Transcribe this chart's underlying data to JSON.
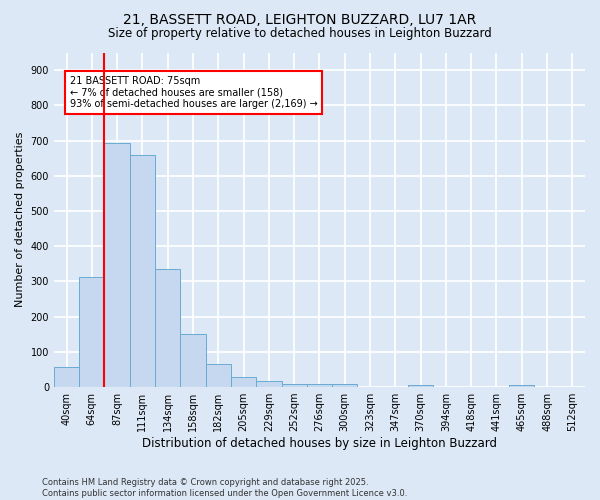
{
  "title": "21, BASSETT ROAD, LEIGHTON BUZZARD, LU7 1AR",
  "subtitle": "Size of property relative to detached houses in Leighton Buzzard",
  "xlabel": "Distribution of detached houses by size in Leighton Buzzard",
  "ylabel": "Number of detached properties",
  "footer": "Contains HM Land Registry data © Crown copyright and database right 2025.\nContains public sector information licensed under the Open Government Licence v3.0.",
  "categories": [
    "40sqm",
    "64sqm",
    "87sqm",
    "111sqm",
    "134sqm",
    "158sqm",
    "182sqm",
    "205sqm",
    "229sqm",
    "252sqm",
    "276sqm",
    "300sqm",
    "323sqm",
    "347sqm",
    "370sqm",
    "394sqm",
    "418sqm",
    "441sqm",
    "465sqm",
    "488sqm",
    "512sqm"
  ],
  "values": [
    58,
    312,
    693,
    658,
    335,
    150,
    65,
    30,
    18,
    10,
    10,
    8,
    0,
    0,
    5,
    0,
    0,
    0,
    5,
    0,
    0
  ],
  "bar_color": "#c5d8f0",
  "bar_edge_color": "#6aabd2",
  "marker_color": "red",
  "annotation_text": "21 BASSETT ROAD: 75sqm\n← 7% of detached houses are smaller (158)\n93% of semi-detached houses are larger (2,169) →",
  "annotation_box_color": "white",
  "annotation_box_edge_color": "red",
  "ylim": [
    0,
    950
  ],
  "yticks": [
    0,
    100,
    200,
    300,
    400,
    500,
    600,
    700,
    800,
    900
  ],
  "bg_color": "#dce8f5",
  "plot_bg_color": "#dce8f5",
  "grid_color": "white",
  "title_fontsize": 10,
  "subtitle_fontsize": 8.5,
  "footer_fontsize": 6,
  "tick_fontsize": 7,
  "ylabel_fontsize": 8,
  "xlabel_fontsize": 8.5
}
